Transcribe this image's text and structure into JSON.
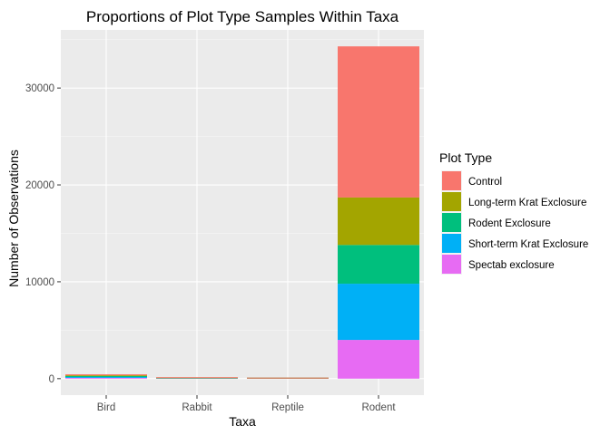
{
  "chart_data": {
    "type": "bar",
    "stacked": true,
    "title": "Proportions of Plot Type Samples Within Taxa",
    "xlabel": "Taxa",
    "ylabel": "Number of Observations",
    "categories": [
      "Bird",
      "Rabbit",
      "Reptile",
      "Rodent"
    ],
    "ylim": [
      -1700,
      36000
    ],
    "yticks": [
      0,
      10000,
      20000,
      30000
    ],
    "ytick_labels": [
      "0",
      "10000",
      "20000",
      "30000"
    ],
    "grid": true,
    "legend": {
      "title": "Plot Type",
      "position": "right"
    },
    "stack_order": [
      "Spectab exclosure",
      "Short-term Krat Exclosure",
      "Rodent Exclosure",
      "Long-term Krat Exclosure",
      "Control"
    ],
    "series": [
      {
        "name": "Control",
        "color": "#F8766D",
        "values": [
          110,
          30,
          5,
          15600
        ]
      },
      {
        "name": "Long-term Krat Exclosure",
        "color": "#A3A500",
        "values": [
          70,
          8,
          3,
          4900
        ]
      },
      {
        "name": "Rodent Exclosure",
        "color": "#00BF7D",
        "values": [
          100,
          30,
          5,
          4000
        ]
      },
      {
        "name": "Short-term Krat Exclosure",
        "color": "#00B0F6",
        "values": [
          90,
          12,
          2,
          5800
        ]
      },
      {
        "name": "Spectab exclosure",
        "color": "#E76BF3",
        "values": [
          80,
          5,
          2,
          4000
        ]
      }
    ]
  }
}
